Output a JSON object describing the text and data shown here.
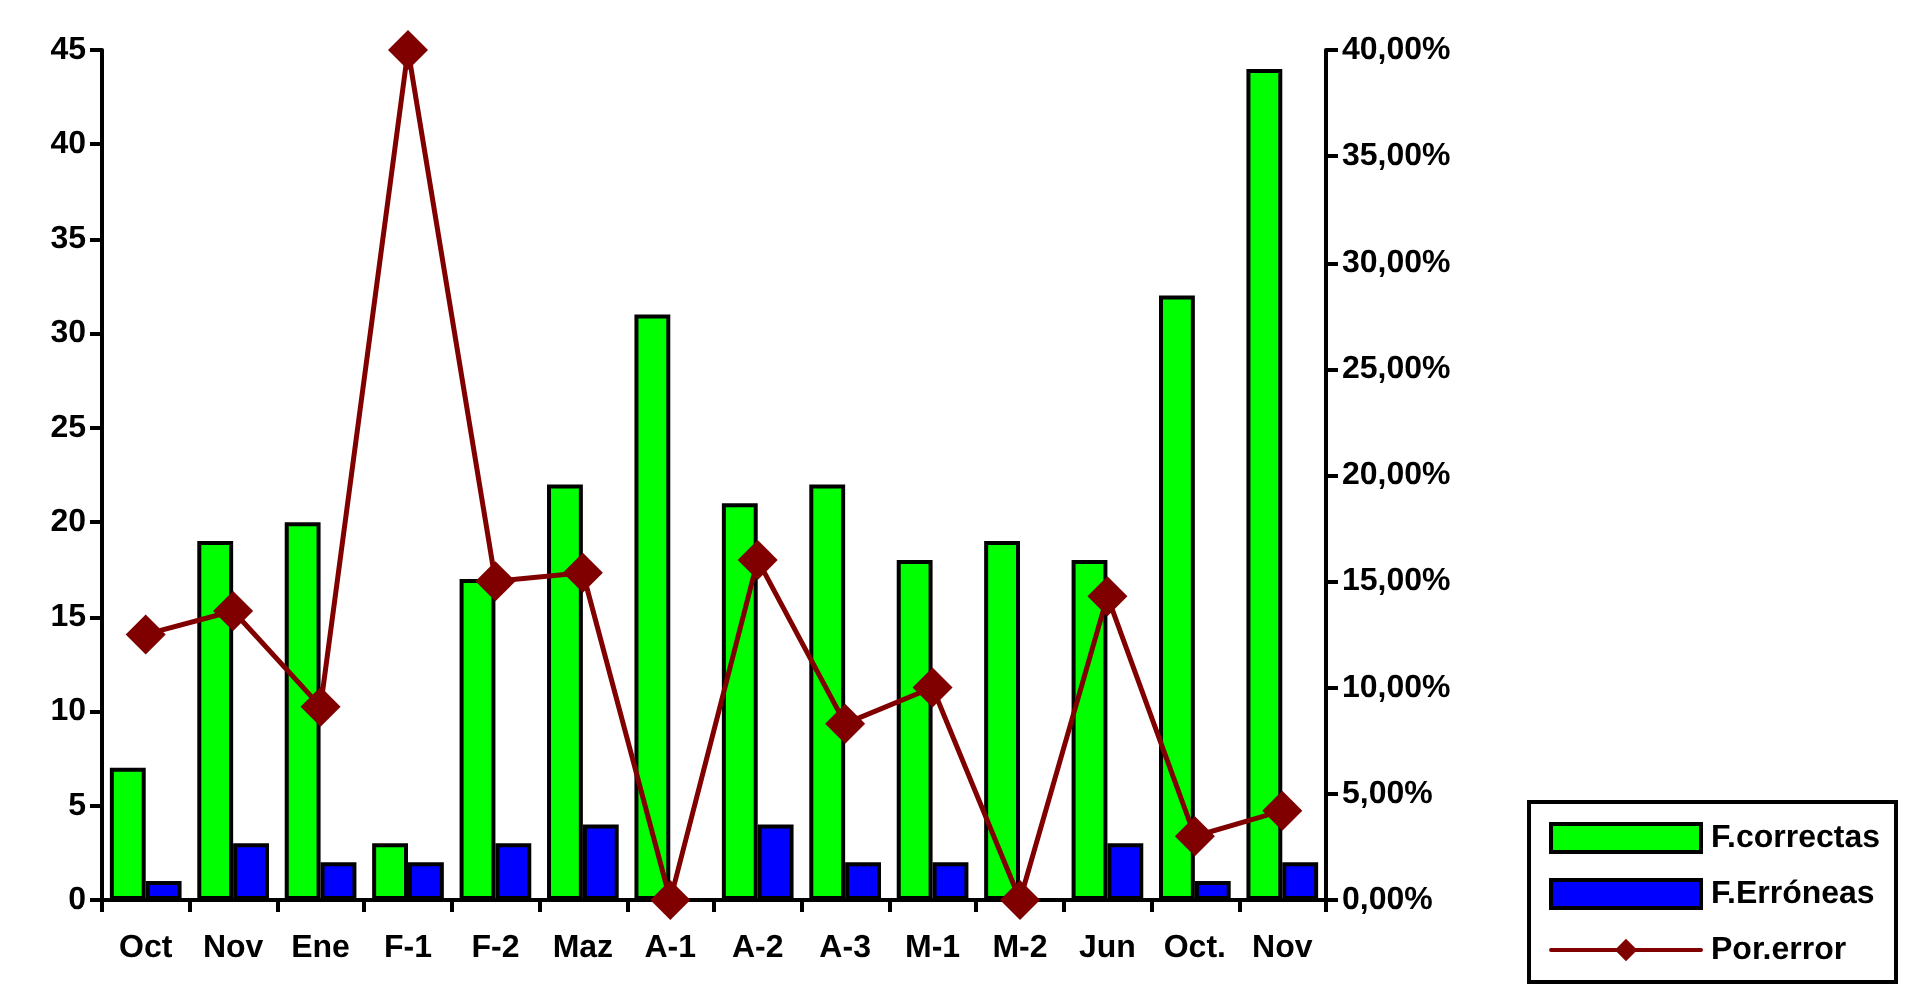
{
  "chart_data": {
    "type": "bar",
    "categories": [
      "Oct",
      "Nov",
      "Ene",
      "F-1",
      "F-2",
      "Maz",
      "A-1",
      "A-2",
      "A-3",
      "M-1",
      "M-2",
      "Jun",
      "Oct.",
      "Nov"
    ],
    "series": [
      {
        "name": "F.correctas",
        "color": "#00ff00",
        "values": [
          7,
          19,
          20,
          3,
          17,
          22,
          31,
          21,
          22,
          18,
          19,
          18,
          32,
          44
        ]
      },
      {
        "name": "F.Erróneas",
        "color": "#0000ff",
        "values": [
          1,
          3,
          2,
          2,
          3,
          4,
          0,
          4,
          2,
          2,
          0,
          3,
          1,
          2
        ]
      },
      {
        "name": "Por.error",
        "type": "line",
        "axis": "y2",
        "color": "#800000",
        "values": [
          12.5,
          13.6,
          9.1,
          40,
          15,
          15.4,
          0,
          16,
          8.3,
          10,
          0,
          14.3,
          3,
          4.2
        ]
      }
    ],
    "ylim": [
      0,
      45
    ],
    "yticks": [
      0,
      5,
      10,
      15,
      20,
      25,
      30,
      35,
      40,
      45
    ],
    "y2lim": [
      0,
      40
    ],
    "y2ticks": [
      {
        "value": 0,
        "label": "0,00%"
      },
      {
        "value": 5,
        "label": "5,00%"
      },
      {
        "value": 10,
        "label": "10,00%"
      },
      {
        "value": 15,
        "label": "15,00%"
      },
      {
        "value": 20,
        "label": "20,00%"
      },
      {
        "value": 25,
        "label": "25,00%"
      },
      {
        "value": 30,
        "label": "30,00%"
      },
      {
        "value": 35,
        "label": "35,00%"
      },
      {
        "value": 40,
        "label": "40,00%"
      }
    ],
    "legend": "bottom right",
    "marker": "diamond",
    "line_style": "solid"
  }
}
